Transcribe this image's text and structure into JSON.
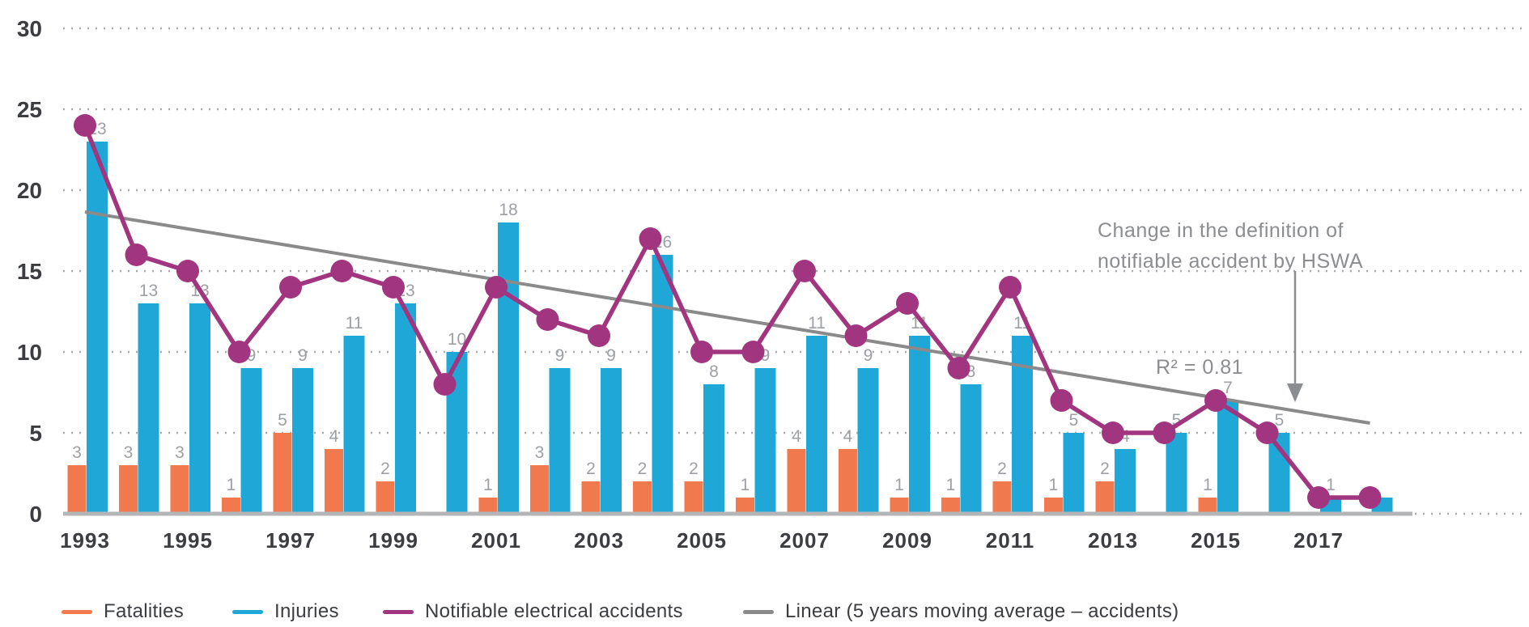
{
  "chart_data": {
    "type": "bar+line combo",
    "title": "",
    "years": [
      1993,
      1994,
      1995,
      1996,
      1997,
      1998,
      1999,
      2000,
      2001,
      2002,
      2003,
      2004,
      2005,
      2006,
      2007,
      2008,
      2009,
      2010,
      2011,
      2012,
      2013,
      2014,
      2015,
      2016,
      2017,
      2018
    ],
    "series": [
      {
        "name": "Fatalities",
        "type": "bar",
        "color": "#f0794d",
        "values": [
          3,
          3,
          3,
          1,
          5,
          4,
          2,
          0,
          1,
          3,
          2,
          2,
          2,
          1,
          4,
          4,
          1,
          1,
          2,
          1,
          2,
          0,
          1,
          0,
          0,
          0
        ]
      },
      {
        "name": "Injuries",
        "type": "bar",
        "color": "#1ea7d7",
        "values": [
          23,
          13,
          13,
          9,
          9,
          11,
          13,
          10,
          18,
          9,
          9,
          16,
          8,
          9,
          11,
          9,
          11,
          8,
          11,
          5,
          4,
          5,
          7,
          5,
          1,
          1
        ]
      },
      {
        "name": "Notifiable electrical accidents",
        "type": "line",
        "color": "#a23580",
        "values": [
          24,
          16,
          15,
          10,
          14,
          15,
          14,
          8,
          14,
          12,
          11,
          17,
          10,
          10,
          15,
          11,
          13,
          9,
          14,
          7,
          5,
          5,
          7,
          5,
          1,
          1
        ]
      },
      {
        "name": "Linear (5 years moving average – accidents)",
        "type": "trendline",
        "color": "#8a8a8a",
        "start_year": 1993,
        "end_year": 2018,
        "start_value": 18.65,
        "end_value": 5.6
      }
    ],
    "ylim": [
      0,
      30
    ],
    "yticks": [
      0,
      5,
      10,
      15,
      20,
      25,
      30
    ],
    "xtick_labels": [
      "1993",
      "1995",
      "1997",
      "1999",
      "2001",
      "2003",
      "2005",
      "2007",
      "2009",
      "2011",
      "2013",
      "2015",
      "2017"
    ],
    "grid": "dotted horizontal",
    "legend_position": "bottom",
    "hidden_injury_labels": [
      2018
    ],
    "annotations": {
      "note_line1": "Change in the definition of",
      "note_line2": "notifiable accident by HSWA",
      "r_squared": "R² = 0.81"
    },
    "colors": {
      "fatalities": "#f0794d",
      "injuries": "#1ea7d7",
      "notifiable": "#a23580",
      "trend": "#8a8a8a",
      "gridline": "#a9abad",
      "axis_text": "#3b3d40",
      "value_label": "#9da0a4",
      "annotation_text": "#8b8d90"
    }
  },
  "legend": {
    "items": [
      {
        "label": "Fatalities",
        "color": "#f0794d"
      },
      {
        "label": "Injuries",
        "color": "#1ea7d7"
      },
      {
        "label": "Notifiable electrical accidents",
        "color": "#a23580"
      },
      {
        "label": "Linear (5 years moving average – accidents)",
        "color": "#8a8a8a"
      }
    ]
  }
}
